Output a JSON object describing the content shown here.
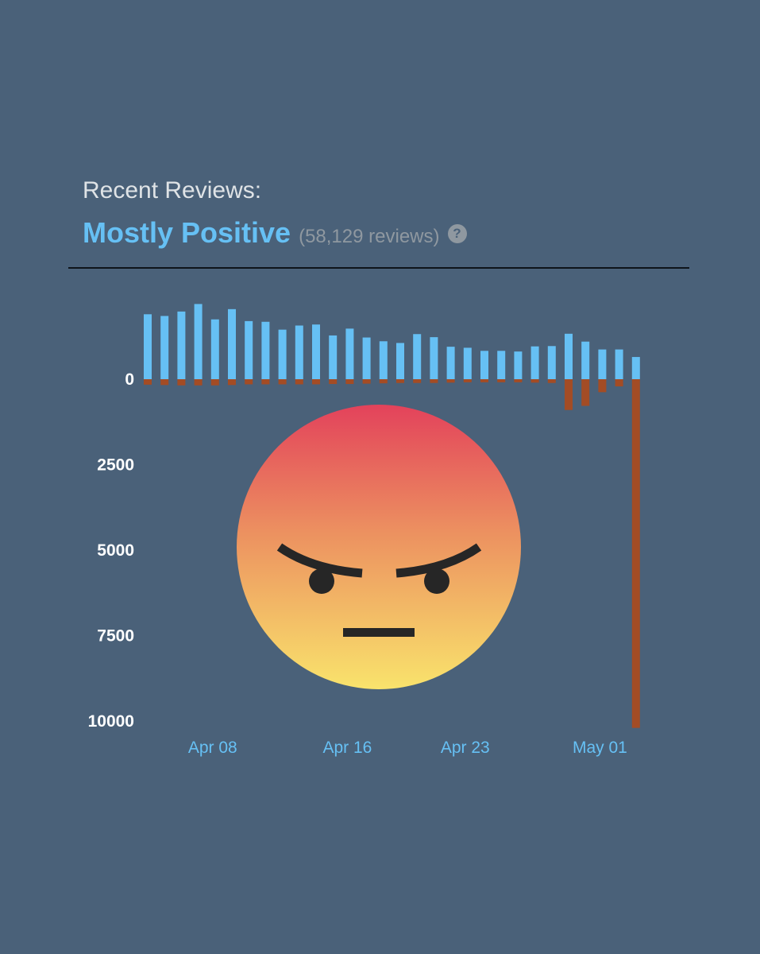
{
  "reviews": {
    "heading": "Recent Reviews:",
    "summary": "Mostly Positive",
    "count": "(58,129 reviews)",
    "help_icon": "question-mark-icon"
  },
  "colors": {
    "background": "#4a6179",
    "positive": "#66c0f4",
    "negative": "#a34c25",
    "summary": "#66c0f4"
  },
  "emoji": {
    "name": "angry-face-emoji"
  },
  "chart_data": {
    "type": "bar",
    "description_axis": "diverging daily review counts: positive above 0, negative below 0",
    "ylim": [
      -1800,
      10000
    ],
    "yticks": [
      "0",
      "2500",
      "5000",
      "7500",
      "10000"
    ],
    "ytick_values": [
      0,
      2500,
      5000,
      7500,
      10000
    ],
    "xtick_labels": [
      {
        "label": "Apr 08",
        "index": 4
      },
      {
        "label": "Apr 16",
        "index": 12
      },
      {
        "label": "Apr 23",
        "index": 19
      },
      {
        "label": "May 01",
        "index": 27
      }
    ],
    "series": [
      {
        "name": "positive",
        "values": [
          1900,
          1850,
          1980,
          2200,
          1750,
          2050,
          1700,
          1680,
          1450,
          1570,
          1600,
          1280,
          1480,
          1220,
          1110,
          1060,
          1320,
          1230,
          950,
          920,
          830,
          830,
          810,
          960,
          970,
          1330,
          1100,
          870,
          870,
          650
        ]
      },
      {
        "name": "negative",
        "values": [
          160,
          170,
          180,
          180,
          180,
          170,
          150,
          150,
          150,
          150,
          150,
          140,
          140,
          130,
          120,
          110,
          110,
          110,
          100,
          90,
          90,
          90,
          90,
          100,
          110,
          900,
          780,
          380,
          210,
          10200
        ]
      }
    ]
  }
}
